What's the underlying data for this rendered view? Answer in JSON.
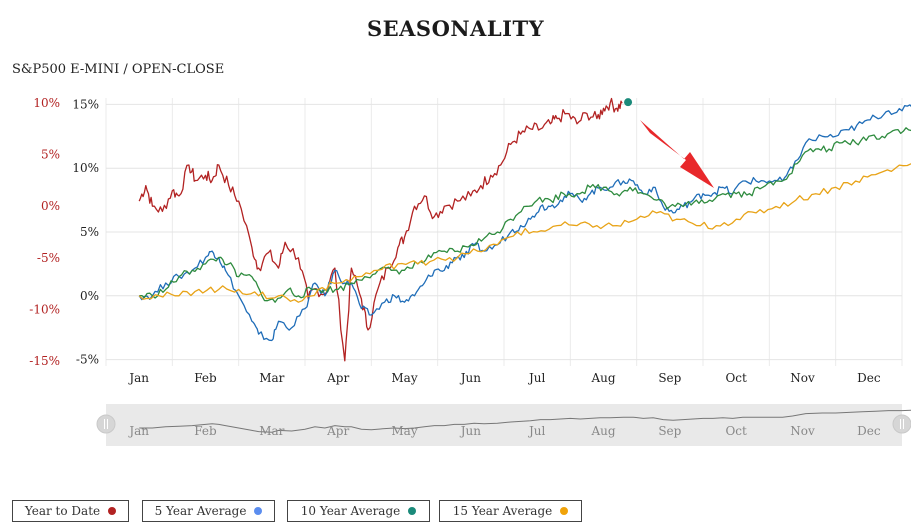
{
  "header": {
    "title": "SEASONALITY",
    "subtitle": "S&P500 E-MINI / OPEN-CLOSE"
  },
  "chart_data": {
    "type": "line",
    "title": "SEASONALITY",
    "months": [
      "Jan",
      "Feb",
      "Mar",
      "Apr",
      "May",
      "Jun",
      "Jul",
      "Aug",
      "Sep",
      "Oct",
      "Nov",
      "Dec"
    ],
    "left_axis": {
      "ticks": [
        "10%",
        "5%",
        "0%",
        "-5%",
        "-10%",
        "-15%"
      ],
      "values": [
        10,
        5,
        0,
        -5,
        -10,
        -15
      ],
      "range": [
        -15.5,
        10.5
      ],
      "color": "#b22222"
    },
    "right_axis": {
      "ticks": [
        "15%",
        "10%",
        "5%",
        "0%",
        "-5%"
      ],
      "values": [
        15,
        10,
        5,
        0,
        -5
      ],
      "range": [
        -5.5,
        15.5
      ],
      "color": "#222222"
    },
    "grid": true,
    "navigator": {
      "months": [
        "Jan",
        "Feb",
        "Mar",
        "Apr",
        "May",
        "Jun",
        "Jul",
        "Aug",
        "Sep",
        "Oct",
        "Nov",
        "Dec"
      ]
    },
    "annotation": {
      "type": "arrow",
      "color": "#e8282b",
      "target_month": 9.3
    },
    "series": [
      {
        "name": "Year to Date",
        "axis": "left",
        "color": "#b22222",
        "points": [
          [
            0,
            0.5
          ],
          [
            0.1,
            2
          ],
          [
            0.2,
            0
          ],
          [
            0.35,
            -0.5
          ],
          [
            0.5,
            1.5
          ],
          [
            0.6,
            1
          ],
          [
            0.75,
            4
          ],
          [
            0.85,
            2.5
          ],
          [
            1,
            3
          ],
          [
            1.1,
            2.5
          ],
          [
            1.2,
            4
          ],
          [
            1.35,
            2
          ],
          [
            1.5,
            0.5
          ],
          [
            1.7,
            -4
          ],
          [
            1.8,
            -6
          ],
          [
            1.95,
            -4.5
          ],
          [
            2.1,
            -6
          ],
          [
            2.2,
            -3.5
          ],
          [
            2.4,
            -5
          ],
          [
            2.55,
            -9
          ],
          [
            2.65,
            -8
          ],
          [
            2.8,
            -8.5
          ],
          [
            2.95,
            -6
          ],
          [
            3.1,
            -15
          ],
          [
            3.2,
            -6
          ],
          [
            3.35,
            -9
          ],
          [
            3.45,
            -12
          ],
          [
            3.6,
            -8
          ],
          [
            3.75,
            -6
          ],
          [
            3.9,
            -4
          ],
          [
            4,
            -3
          ],
          [
            4.15,
            0
          ],
          [
            4.3,
            1
          ],
          [
            4.45,
            -1
          ],
          [
            4.6,
            0
          ],
          [
            4.8,
            0.5
          ],
          [
            5,
            1
          ],
          [
            5.15,
            2
          ],
          [
            5.3,
            3
          ],
          [
            5.45,
            4
          ],
          [
            5.6,
            6
          ],
          [
            5.75,
            7
          ],
          [
            5.9,
            7.5
          ],
          [
            6.05,
            7.5
          ],
          [
            6.2,
            8
          ],
          [
            6.3,
            8.5
          ],
          [
            6.45,
            9
          ],
          [
            6.6,
            8
          ],
          [
            6.75,
            9
          ],
          [
            6.9,
            8.5
          ],
          [
            7,
            9.5
          ],
          [
            7.1,
            10
          ],
          [
            7.2,
            9.5
          ],
          [
            7.28,
            10
          ]
        ]
      },
      {
        "name": "5 Year Average",
        "axis": "right",
        "color": "#1f6db8",
        "points": [
          [
            0,
            0
          ],
          [
            0.2,
            0
          ],
          [
            0.4,
            1
          ],
          [
            0.6,
            1.5
          ],
          [
            0.8,
            2
          ],
          [
            1,
            3
          ],
          [
            1.1,
            3.5
          ],
          [
            1.2,
            3
          ],
          [
            1.3,
            2
          ],
          [
            1.5,
            0
          ],
          [
            1.7,
            -2
          ],
          [
            1.8,
            -3
          ],
          [
            2,
            -3.5
          ],
          [
            2.1,
            -2
          ],
          [
            2.3,
            -2.5
          ],
          [
            2.5,
            -1
          ],
          [
            2.65,
            1
          ],
          [
            2.8,
            0
          ],
          [
            2.95,
            2
          ],
          [
            3.1,
            1
          ],
          [
            3.2,
            1
          ],
          [
            3.35,
            -1
          ],
          [
            3.5,
            -1.5
          ],
          [
            3.7,
            -0.5
          ],
          [
            3.85,
            0
          ],
          [
            4,
            -0.5
          ],
          [
            4.15,
            0
          ],
          [
            4.3,
            1
          ],
          [
            4.45,
            2
          ],
          [
            4.6,
            2
          ],
          [
            4.75,
            3
          ],
          [
            4.9,
            3
          ],
          [
            5.05,
            4
          ],
          [
            5.2,
            3.5
          ],
          [
            5.4,
            4
          ],
          [
            5.6,
            5
          ],
          [
            5.75,
            5.5
          ],
          [
            5.9,
            6
          ],
          [
            6.05,
            7
          ],
          [
            6.2,
            7
          ],
          [
            6.35,
            7.5
          ],
          [
            6.5,
            8
          ],
          [
            6.65,
            7.5
          ],
          [
            6.8,
            8
          ],
          [
            6.95,
            8.5
          ],
          [
            7.1,
            8.5
          ],
          [
            7.3,
            9
          ],
          [
            7.45,
            9
          ],
          [
            7.6,
            8
          ],
          [
            7.75,
            8.5
          ],
          [
            7.9,
            7
          ],
          [
            8.05,
            6.5
          ],
          [
            8.2,
            7
          ],
          [
            8.35,
            7.5
          ],
          [
            8.5,
            8
          ],
          [
            8.65,
            8
          ],
          [
            8.8,
            8.5
          ],
          [
            8.95,
            8
          ],
          [
            9.1,
            9
          ],
          [
            9.3,
            9
          ],
          [
            9.5,
            9
          ],
          [
            9.7,
            9
          ],
          [
            9.85,
            10
          ],
          [
            10.05,
            12
          ],
          [
            10.3,
            12.5
          ],
          [
            10.5,
            12.5
          ],
          [
            10.7,
            13
          ],
          [
            10.9,
            13.5
          ],
          [
            11.1,
            14
          ],
          [
            11.3,
            14.5
          ],
          [
            11.5,
            14.5
          ],
          [
            11.7,
            15
          ],
          [
            11.85,
            15
          ]
        ]
      },
      {
        "name": "10 Year Average",
        "axis": "right",
        "color": "#2e8b3e",
        "points": [
          [
            0,
            0
          ],
          [
            0.2,
            0
          ],
          [
            0.4,
            0.5
          ],
          [
            0.6,
            1.5
          ],
          [
            0.8,
            2
          ],
          [
            1,
            2.5
          ],
          [
            1.2,
            3
          ],
          [
            1.35,
            2.5
          ],
          [
            1.5,
            1.5
          ],
          [
            1.7,
            1.5
          ],
          [
            1.85,
            0
          ],
          [
            2.05,
            -0.5
          ],
          [
            2.25,
            0.5
          ],
          [
            2.4,
            0
          ],
          [
            2.6,
            0.5
          ],
          [
            2.8,
            0.5
          ],
          [
            3,
            0.5
          ],
          [
            3.2,
            1
          ],
          [
            3.4,
            1.5
          ],
          [
            3.6,
            2
          ],
          [
            3.8,
            2
          ],
          [
            4,
            2
          ],
          [
            4.2,
            2.5
          ],
          [
            4.4,
            3
          ],
          [
            4.6,
            3.5
          ],
          [
            4.8,
            3.5
          ],
          [
            5,
            4
          ],
          [
            5.2,
            4.5
          ],
          [
            5.4,
            5
          ],
          [
            5.6,
            6
          ],
          [
            5.8,
            7
          ],
          [
            6,
            7.5
          ],
          [
            6.2,
            7.5
          ],
          [
            6.4,
            8
          ],
          [
            6.6,
            8
          ],
          [
            6.8,
            8.5
          ],
          [
            7,
            8.5
          ],
          [
            7.2,
            8
          ],
          [
            7.4,
            8.5
          ],
          [
            7.6,
            8
          ],
          [
            7.8,
            7.5
          ],
          [
            8,
            7
          ],
          [
            8.2,
            7
          ],
          [
            8.4,
            7.5
          ],
          [
            8.6,
            7.5
          ],
          [
            8.8,
            8
          ],
          [
            9,
            8
          ],
          [
            9.2,
            8
          ],
          [
            9.4,
            8.5
          ],
          [
            9.6,
            9
          ],
          [
            9.8,
            9.5
          ],
          [
            10,
            11
          ],
          [
            10.2,
            11.5
          ],
          [
            10.4,
            11.5
          ],
          [
            10.6,
            12
          ],
          [
            10.8,
            12
          ],
          [
            11,
            12.5
          ],
          [
            11.2,
            12.5
          ],
          [
            11.4,
            13
          ],
          [
            11.6,
            13
          ],
          [
            11.85,
            13.5
          ]
        ]
      },
      {
        "name": "15 Year Average",
        "axis": "right",
        "color": "#e8a317",
        "points": [
          [
            0,
            0
          ],
          [
            0.3,
            0
          ],
          [
            0.6,
            0
          ],
          [
            0.9,
            0.5
          ],
          [
            1.2,
            0.5
          ],
          [
            1.5,
            0.5
          ],
          [
            1.8,
            0
          ],
          [
            2.1,
            0
          ],
          [
            2.4,
            -0.5
          ],
          [
            2.7,
            0.5
          ],
          [
            3,
            1
          ],
          [
            3.3,
            1.5
          ],
          [
            3.6,
            2
          ],
          [
            3.9,
            2.5
          ],
          [
            4.2,
            2.5
          ],
          [
            4.5,
            3
          ],
          [
            4.8,
            3
          ],
          [
            5.1,
            3.5
          ],
          [
            5.4,
            4
          ],
          [
            5.7,
            5
          ],
          [
            6,
            5
          ],
          [
            6.3,
            5.5
          ],
          [
            6.6,
            5.5
          ],
          [
            6.9,
            5.5
          ],
          [
            7.2,
            5.5
          ],
          [
            7.5,
            6
          ],
          [
            7.8,
            6.5
          ],
          [
            8.1,
            6
          ],
          [
            8.4,
            5.5
          ],
          [
            8.7,
            5.5
          ],
          [
            9,
            6
          ],
          [
            9.3,
            6.5
          ],
          [
            9.6,
            7
          ],
          [
            9.9,
            7.5
          ],
          [
            10.2,
            8
          ],
          [
            10.5,
            8.5
          ],
          [
            10.8,
            9
          ],
          [
            11.1,
            9.5
          ],
          [
            11.4,
            10
          ],
          [
            11.7,
            10.5
          ],
          [
            11.85,
            10.5
          ]
        ]
      }
    ]
  },
  "legend": [
    {
      "label": "Year to Date",
      "color": "#b22222"
    },
    {
      "label": "5 Year Average",
      "color": "#5b8def"
    },
    {
      "label": "10 Year Average",
      "color": "#1a8a7a"
    },
    {
      "label": "15 Year Average",
      "color": "#f0a30a"
    }
  ]
}
